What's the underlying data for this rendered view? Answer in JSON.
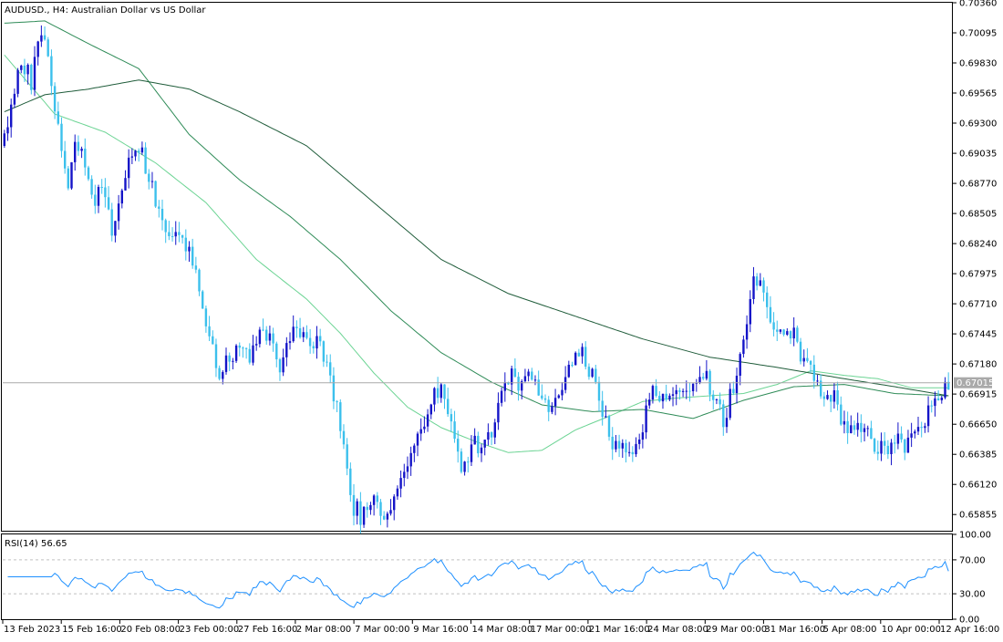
{
  "chart_data": {
    "type": "candlestick",
    "title": "AUDUSD., H4:  Australian Dollar vs US Dollar",
    "symbol": "AUDUSD.",
    "timeframe": "H4",
    "description": "Australian Dollar vs US Dollar",
    "current_price": "0.67015",
    "ylim": [
      0.6572,
      0.7036
    ],
    "y_ticks": [
      "0.70360",
      "0.70095",
      "0.69830",
      "0.69565",
      "0.69300",
      "0.69035",
      "0.68770",
      "0.68505",
      "0.68240",
      "0.67975",
      "0.67710",
      "0.67445",
      "0.67180",
      "0.66915",
      "0.66650",
      "0.66385",
      "0.66120",
      "0.65855"
    ],
    "x_ticks": [
      "13 Feb 2023",
      "15 Feb 16:00",
      "20 Feb 08:00",
      "23 Feb 00:00",
      "27 Feb 16:00",
      "2 Mar 08:00",
      "7 Mar 00:00",
      "9 Mar 16:00",
      "14 Mar 08:00",
      "17 Mar 00:00",
      "21 Mar 16:00",
      "24 Mar 08:00",
      "29 Mar 00:00",
      "31 Mar 16:00",
      "5 Apr 08:00",
      "10 Apr 00:00",
      "12 Apr 16:00"
    ],
    "price_path": [
      [
        0,
        0.691
      ],
      [
        3,
        0.6942
      ],
      [
        6,
        0.6985
      ],
      [
        9,
        0.6968
      ],
      [
        12,
        0.7012
      ],
      [
        14,
        0.6988
      ],
      [
        17,
        0.6928
      ],
      [
        20,
        0.688
      ],
      [
        22,
        0.6918
      ],
      [
        25,
        0.689
      ],
      [
        28,
        0.686
      ],
      [
        30,
        0.687
      ],
      [
        33,
        0.6835
      ],
      [
        35,
        0.6858
      ],
      [
        38,
        0.6905
      ],
      [
        41,
        0.6912
      ],
      [
        44,
        0.688
      ],
      [
        47,
        0.6855
      ],
      [
        50,
        0.683
      ],
      [
        53,
        0.6826
      ],
      [
        56,
        0.682
      ],
      [
        59,
        0.679
      ],
      [
        62,
        0.6742
      ],
      [
        65,
        0.671
      ],
      [
        68,
        0.6722
      ],
      [
        71,
        0.6736
      ],
      [
        74,
        0.6725
      ],
      [
        77,
        0.6752
      ],
      [
        80,
        0.6738
      ],
      [
        83,
        0.6716
      ],
      [
        86,
        0.6738
      ],
      [
        89,
        0.675
      ],
      [
        92,
        0.6742
      ],
      [
        95,
        0.6733
      ],
      [
        98,
        0.6708
      ],
      [
        101,
        0.666
      ],
      [
        104,
        0.6596
      ],
      [
        107,
        0.6585
      ],
      [
        110,
        0.66
      ],
      [
        113,
        0.6584
      ],
      [
        116,
        0.6592
      ],
      [
        119,
        0.661
      ],
      [
        122,
        0.664
      ],
      [
        125,
        0.6665
      ],
      [
        128,
        0.6682
      ],
      [
        131,
        0.67
      ],
      [
        134,
        0.6668
      ],
      [
        137,
        0.662
      ],
      [
        140,
        0.665
      ],
      [
        143,
        0.664
      ],
      [
        146,
        0.666
      ],
      [
        149,
        0.669
      ],
      [
        152,
        0.6708
      ],
      [
        155,
        0.67
      ],
      [
        158,
        0.6705
      ],
      [
        161,
        0.6688
      ],
      [
        164,
        0.6672
      ],
      [
        167,
        0.67
      ],
      [
        170,
        0.6718
      ],
      [
        173,
        0.6726
      ],
      [
        176,
        0.6708
      ],
      [
        179,
        0.6672
      ],
      [
        182,
        0.665
      ],
      [
        185,
        0.664
      ],
      [
        188,
        0.6642
      ],
      [
        191,
        0.666
      ],
      [
        194,
        0.67
      ],
      [
        197,
        0.6688
      ],
      [
        200,
        0.6692
      ],
      [
        203,
        0.6686
      ],
      [
        206,
        0.6702
      ],
      [
        209,
        0.6712
      ],
      [
        212,
        0.669
      ],
      [
        215,
        0.6668
      ],
      [
        218,
        0.67
      ],
      [
        221,
        0.6745
      ],
      [
        224,
        0.679
      ],
      [
        227,
        0.6788
      ],
      [
        230,
        0.675
      ],
      [
        233,
        0.6736
      ],
      [
        236,
        0.6742
      ],
      [
        239,
        0.672
      ],
      [
        242,
        0.6705
      ],
      [
        245,
        0.669
      ],
      [
        248,
        0.669
      ],
      [
        251,
        0.666
      ],
      [
        254,
        0.6668
      ],
      [
        257,
        0.6663
      ],
      [
        260,
        0.6645
      ],
      [
        263,
        0.664
      ],
      [
        266,
        0.665
      ],
      [
        269,
        0.6646
      ],
      [
        272,
        0.666
      ],
      [
        275,
        0.6665
      ],
      [
        278,
        0.669
      ],
      [
        281,
        0.6701
      ]
    ],
    "moving_averages": [
      {
        "color": "#6cd494",
        "path": [
          [
            0,
            0.699
          ],
          [
            15,
            0.6938
          ],
          [
            30,
            0.6922
          ],
          [
            45,
            0.6895
          ],
          [
            60,
            0.686
          ],
          [
            75,
            0.681
          ],
          [
            90,
            0.6775
          ],
          [
            100,
            0.6745
          ],
          [
            110,
            0.671
          ],
          [
            120,
            0.668
          ],
          [
            130,
            0.6662
          ],
          [
            140,
            0.665
          ],
          [
            150,
            0.664
          ],
          [
            160,
            0.6642
          ],
          [
            170,
            0.666
          ],
          [
            180,
            0.6672
          ],
          [
            190,
            0.6685
          ],
          [
            200,
            0.6688
          ],
          [
            210,
            0.669
          ],
          [
            220,
            0.6692
          ],
          [
            230,
            0.67
          ],
          [
            240,
            0.6712
          ],
          [
            250,
            0.6708
          ],
          [
            260,
            0.6705
          ],
          [
            270,
            0.6697
          ],
          [
            281,
            0.6697
          ]
        ]
      },
      {
        "color": "#2e8b57",
        "path": [
          [
            0,
            0.7018
          ],
          [
            12,
            0.702
          ],
          [
            25,
            0.7
          ],
          [
            40,
            0.6978
          ],
          [
            55,
            0.692
          ],
          [
            70,
            0.688
          ],
          [
            85,
            0.6848
          ],
          [
            100,
            0.681
          ],
          [
            115,
            0.6765
          ],
          [
            130,
            0.6728
          ],
          [
            145,
            0.6702
          ],
          [
            160,
            0.6682
          ],
          [
            175,
            0.6676
          ],
          [
            190,
            0.6678
          ],
          [
            205,
            0.667
          ],
          [
            220,
            0.6686
          ],
          [
            235,
            0.6698
          ],
          [
            250,
            0.67
          ],
          [
            265,
            0.6692
          ],
          [
            281,
            0.669
          ]
        ]
      },
      {
        "color": "#1f5c3a",
        "path": [
          [
            0,
            0.694
          ],
          [
            12,
            0.6955
          ],
          [
            25,
            0.696
          ],
          [
            40,
            0.6968
          ],
          [
            55,
            0.696
          ],
          [
            70,
            0.694
          ],
          [
            90,
            0.691
          ],
          [
            110,
            0.686
          ],
          [
            130,
            0.681
          ],
          [
            150,
            0.678
          ],
          [
            170,
            0.676
          ],
          [
            190,
            0.674
          ],
          [
            210,
            0.6724
          ],
          [
            230,
            0.6715
          ],
          [
            250,
            0.6705
          ],
          [
            265,
            0.6698
          ],
          [
            281,
            0.669
          ]
        ]
      }
    ],
    "rsi": {
      "label": "RSI(14) 56.65",
      "period": 14,
      "value": 56.65,
      "ylim": [
        0,
        100
      ],
      "y_ticks": [
        "100.00",
        "70.00",
        "30.00",
        "0.00"
      ],
      "levels": [
        70,
        30
      ],
      "line_color": "#1e90ff"
    },
    "colors": {
      "bull": "#1414c8",
      "bear": "#3cc0ec",
      "price_line": "#a9a9a9",
      "grid": "#c0c0c0"
    },
    "grid": false
  }
}
